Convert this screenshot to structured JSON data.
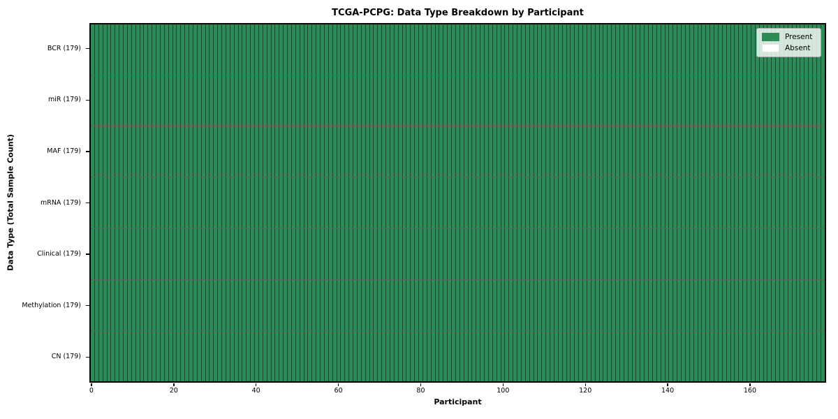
{
  "chart_data": {
    "type": "heatmap",
    "title": "TCGA-PCPG: Data Type Breakdown by Participant",
    "xlabel": "Participant",
    "ylabel": "Data Type (Total Sample Count)",
    "participants": 179,
    "x_ticks": [
      0,
      20,
      40,
      60,
      80,
      100,
      120,
      140,
      160
    ],
    "x_range": [
      0,
      179
    ],
    "grid": "off",
    "rows": [
      {
        "label": "BCR (179)",
        "data_type": "BCR",
        "total_samples": 179,
        "present": 179,
        "absent": 0
      },
      {
        "label": "miR (179)",
        "data_type": "miR",
        "total_samples": 179,
        "present": 179,
        "absent": 0
      },
      {
        "label": "MAF (179)",
        "data_type": "MAF",
        "total_samples": 179,
        "present": 179,
        "absent": 0
      },
      {
        "label": "mRNA (179)",
        "data_type": "mRNA",
        "total_samples": 179,
        "present": 179,
        "absent": 0
      },
      {
        "label": "Clinical (179)",
        "data_type": "Clinical",
        "total_samples": 179,
        "present": 179,
        "absent": 0
      },
      {
        "label": "Methylation (179)",
        "data_type": "Methylation",
        "total_samples": 179,
        "present": 179,
        "absent": 0
      },
      {
        "label": "CN (179)",
        "data_type": "CN",
        "total_samples": 179,
        "present": 179,
        "absent": 0
      }
    ],
    "legend": {
      "position": "upper right",
      "items": [
        {
          "label": "Present",
          "color": "#2e8b57"
        },
        {
          "label": "Absent",
          "color": "#ffffff"
        }
      ]
    },
    "colors": {
      "present": "#2e8b57",
      "absent": "#ffffff",
      "cell_edge": "rgba(0,0,0,0.48)",
      "row_separator": "rgba(0,0,0,0.62)",
      "spine": "#000000"
    }
  }
}
